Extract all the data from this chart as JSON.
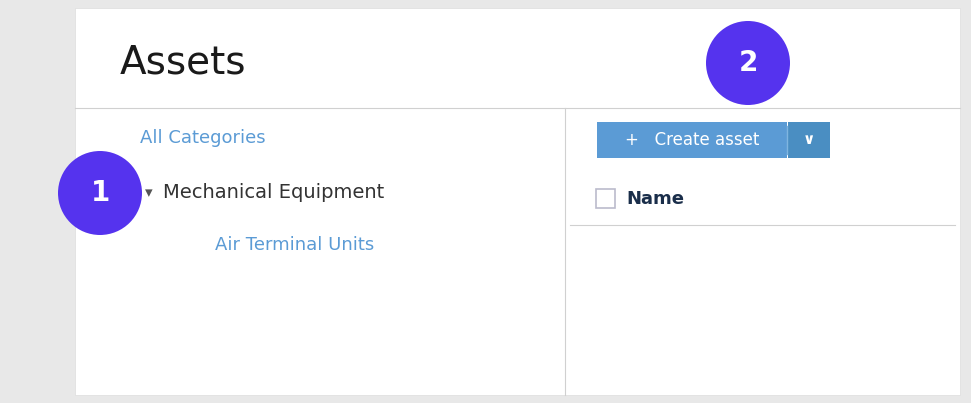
{
  "bg_color": "#e8e8e8",
  "panel_color": "#ffffff",
  "title": "Assets",
  "title_fontsize": 28,
  "title_color": "#1a1a1a",
  "divider_color": "#d0d0d0",
  "all_categories_text": "All Categories",
  "all_categories_color": "#5b9bd5",
  "all_categories_fontsize": 13,
  "mech_equip_text": "Mechanical Equipment",
  "mech_equip_color": "#333333",
  "mech_equip_fontsize": 14,
  "air_terminal_text": "Air Terminal Units",
  "air_terminal_color": "#5b9bd5",
  "air_terminal_fontsize": 13,
  "create_btn_color": "#5b9bd5",
  "create_btn_text": "+   Create asset",
  "create_btn_text_color": "#ffffff",
  "create_btn_fontsize": 12,
  "dropdown_btn_color": "#4a8ec2",
  "dropdown_text_color": "#ffffff",
  "name_text": "Name",
  "name_fontsize": 13,
  "name_color": "#1a2e4a",
  "circle1_color": "#5533ee",
  "circle2_color": "#5533ee",
  "circle1_label": "1",
  "circle2_label": "2",
  "circle_fontsize": 20,
  "circle_text_color": "#ffffff",
  "arrow_color": "#555555"
}
